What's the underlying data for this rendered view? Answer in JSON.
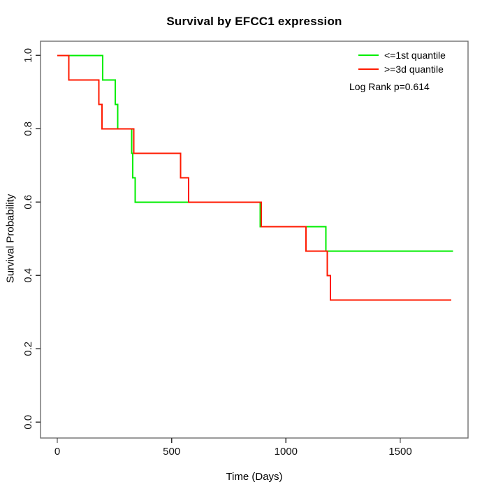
{
  "title": "Survival by EFCC1 expression",
  "x_axis_label": "Time (Days)",
  "y_axis_label": "Survival Probability",
  "legend": {
    "entries": [
      {
        "label": "<=1st quantile",
        "color": "#00ee00"
      },
      {
        "label": ">=3d quantile",
        "color": "#ff1a00"
      }
    ],
    "annotation": "Log Rank p=0.614"
  },
  "chart_data": {
    "type": "line",
    "subtype": "kaplan-meier-step",
    "title": "Survival by EFCC1 expression",
    "xlabel": "Time (Days)",
    "ylabel": "Survival Probability",
    "xlim": [
      0,
      1800
    ],
    "ylim": [
      0.0,
      1.0
    ],
    "x_ticks": [
      0,
      500,
      1000,
      1500
    ],
    "y_ticks": [
      0.0,
      0.2,
      0.4,
      0.6,
      0.8,
      1.0
    ],
    "grid": false,
    "legend_position": "top-right",
    "annotation": "Log Rank p=0.614",
    "series": [
      {
        "name": "<=1st quantile",
        "color": "#00ee00",
        "steps": [
          [
            0,
            1.0
          ],
          [
            198,
            0.9333
          ],
          [
            254,
            0.8667
          ],
          [
            264,
            0.8
          ],
          [
            325,
            0.7333
          ],
          [
            330,
            0.6667
          ],
          [
            340,
            0.6
          ],
          [
            888,
            0.5333
          ],
          [
            1175,
            0.4667
          ]
        ],
        "end_time": 1730
      },
      {
        "name": ">=3d quantile",
        "color": "#ff1a00",
        "steps": [
          [
            0,
            1.0
          ],
          [
            50,
            0.9333
          ],
          [
            182,
            0.8667
          ],
          [
            196,
            0.8
          ],
          [
            335,
            0.7333
          ],
          [
            539,
            0.6667
          ],
          [
            574,
            0.6
          ],
          [
            892,
            0.5333
          ],
          [
            1087,
            0.4667
          ],
          [
            1180,
            0.4
          ],
          [
            1194,
            0.3333
          ]
        ],
        "end_time": 1723
      }
    ]
  }
}
